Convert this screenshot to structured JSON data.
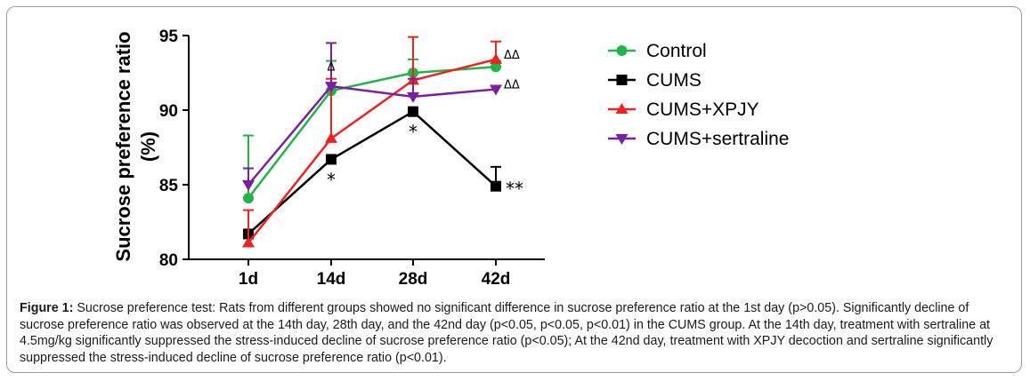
{
  "chart_data": {
    "type": "line",
    "title": "",
    "xlabel": "",
    "ylabel": "Sucrose preference ratio",
    "ylabel_unit": "(%)",
    "categories": [
      "1d",
      "14d",
      "28d",
      "42d"
    ],
    "ylim": [
      80,
      95
    ],
    "yticks": [
      80,
      85,
      90,
      95
    ],
    "grid": false,
    "legend_position": "right",
    "series": [
      {
        "name": "Control",
        "color": "#22b34a",
        "marker": "circle",
        "values": [
          84.1,
          91.3,
          92.5,
          92.9
        ],
        "errors": [
          4.2,
          2.0,
          0.9,
          0.4
        ]
      },
      {
        "name": "CUMS",
        "color": "#000000",
        "marker": "square",
        "values": [
          81.7,
          86.7,
          89.9,
          84.9
        ],
        "errors": [
          0.0,
          0.0,
          0.0,
          1.3
        ]
      },
      {
        "name": "CUMS+XPJY",
        "color": "#ee2222",
        "marker": "triangle-up",
        "values": [
          81.1,
          88.1,
          92.0,
          93.4
        ],
        "errors": [
          2.2,
          4.0,
          2.9,
          1.2
        ]
      },
      {
        "name": "CUMS+sertraline",
        "color": "#7b1fa2",
        "marker": "triangle-down",
        "values": [
          85.0,
          91.6,
          90.9,
          91.4
        ],
        "errors": [
          1.1,
          2.9,
          1.2,
          0.0
        ]
      }
    ],
    "annotations": [
      {
        "category": "14d",
        "value": 86.7,
        "text": "*"
      },
      {
        "category": "28d",
        "value": 89.9,
        "text": "*"
      },
      {
        "category": "42d",
        "value": 84.9,
        "text": "**"
      },
      {
        "category": "14d",
        "value": 92.9,
        "text": "Δ"
      },
      {
        "category": "42d",
        "value": 93.4,
        "text": "ΔΔ"
      },
      {
        "category": "42d",
        "value": 91.4,
        "text": "ΔΔ"
      }
    ]
  },
  "caption": {
    "label": "Figure 1:",
    "text": "Sucrose preference test: Rats from different groups showed no significant difference in sucrose preference ratio at the 1st day (p>0.05). Significantly decline of sucrose preference ratio was observed at the 14th day, 28th day, and the 42nd day (p<0.05, p<0.05, p<0.01) in the CUMS group. At the 14th day, treatment with sertraline at 4.5mg/kg significantly suppressed the stress-induced decline of sucrose preference ratio (p<0.05); At the 42nd day, treatment with XPJY decoction and sertraline significantly suppressed the stress-induced decline of sucrose preference ratio (p<0.01)."
  }
}
